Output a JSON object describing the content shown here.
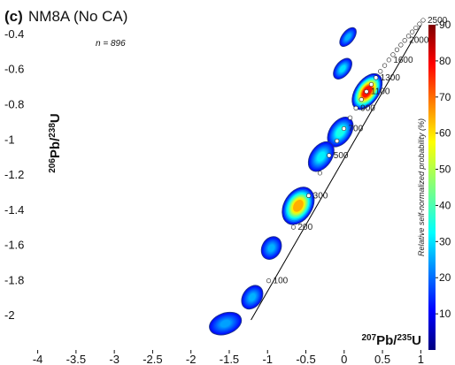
{
  "chart_data": {
    "type": "scatter",
    "panel_label": "(c)",
    "title": "NM8A (No CA)",
    "annotation": "n = 896",
    "xlabel": {
      "iso": "207",
      "elem": "Pb",
      "iso2": "235",
      "elem2": "U"
    },
    "ylabel": {
      "iso": "206",
      "elem": "Pb",
      "iso2": "238",
      "elem2": "U"
    },
    "xlim": [
      -4,
      1.1
    ],
    "ylim": [
      -2.2,
      -0.35
    ],
    "x_ticks": [
      "-4",
      "-3.5",
      "-3",
      "-2.5",
      "-2",
      "-1.5",
      "-1",
      "-0.5",
      "0",
      "0.5",
      "1"
    ],
    "x_tick_values": [
      -4,
      -3.5,
      -3,
      -2.5,
      -2,
      -1.5,
      -1,
      -0.5,
      0,
      0.5,
      1
    ],
    "y_ticks": [
      "-0.4",
      "-0.6",
      "-0.8",
      "-1",
      "-1.2",
      "-1.4",
      "-1.6",
      "-1.8",
      "-2"
    ],
    "y_tick_values": [
      -0.4,
      -0.6,
      -0.8,
      -1,
      -1.2,
      -1.4,
      -1.6,
      -1.8,
      -2
    ],
    "concordia_ages_ma": [
      100,
      200,
      300,
      400,
      500,
      600,
      700,
      800,
      900,
      1000,
      1100,
      1200,
      1300,
      1400,
      1500,
      1600,
      1700,
      1800,
      1900,
      2000,
      2100,
      2200,
      2300,
      2400,
      2500
    ],
    "concordia_labels": [
      {
        "age": 100,
        "text": "100"
      },
      {
        "age": 200,
        "text": "200"
      },
      {
        "age": 300,
        "text": "300"
      },
      {
        "age": 500,
        "text": "500"
      },
      {
        "age": 700,
        "text": "700"
      },
      {
        "age": 900,
        "text": "900"
      },
      {
        "age": 1100,
        "text": "1100"
      },
      {
        "age": 1300,
        "text": "1300"
      },
      {
        "age": 1600,
        "text": "1600"
      },
      {
        "age": 2000,
        "text": "2000"
      },
      {
        "age": 2500,
        "text": "2500"
      }
    ],
    "density_modes": [
      {
        "x": 0.05,
        "y": -0.42,
        "sx": 0.12,
        "sy": 0.05,
        "angle": -52,
        "level": 0.22
      },
      {
        "x": -0.02,
        "y": -0.6,
        "sx": 0.13,
        "sy": 0.06,
        "angle": -52,
        "level": 0.28
      },
      {
        "x": 0.3,
        "y": -0.73,
        "sx": 0.22,
        "sy": 0.1,
        "angle": -55,
        "level": 0.95
      },
      {
        "x": -0.05,
        "y": -0.96,
        "sx": 0.18,
        "sy": 0.09,
        "angle": -55,
        "level": 0.35
      },
      {
        "x": -0.3,
        "y": -1.1,
        "sx": 0.18,
        "sy": 0.09,
        "angle": -55,
        "level": 0.3
      },
      {
        "x": -0.6,
        "y": -1.38,
        "sx": 0.22,
        "sy": 0.12,
        "angle": -58,
        "level": 0.75
      },
      {
        "x": -0.95,
        "y": -1.62,
        "sx": 0.13,
        "sy": 0.08,
        "angle": -60,
        "level": 0.22
      },
      {
        "x": -1.2,
        "y": -1.9,
        "sx": 0.14,
        "sy": 0.08,
        "angle": -55,
        "level": 0.22
      },
      {
        "x": -1.55,
        "y": -2.05,
        "sx": 0.18,
        "sy": 0.09,
        "angle": -20,
        "level": 0.2
      }
    ],
    "colorbar": {
      "label": "Relative self-normalized probability (%)",
      "ticks": [
        "10",
        "20",
        "30",
        "40",
        "50",
        "60",
        "70",
        "80",
        "90"
      ],
      "tick_values": [
        10,
        20,
        30,
        40,
        50,
        60,
        70,
        80,
        90
      ],
      "range": [
        0,
        90
      ],
      "colormap": "jet",
      "position": "right"
    },
    "colors": {
      "background_field": "#ffffff",
      "concordia": "#000000",
      "marker_fill": "#ffffff",
      "marker_stroke": "#1a1a1a",
      "low": "#1e3ba3"
    },
    "grid": false,
    "legend": "none"
  }
}
